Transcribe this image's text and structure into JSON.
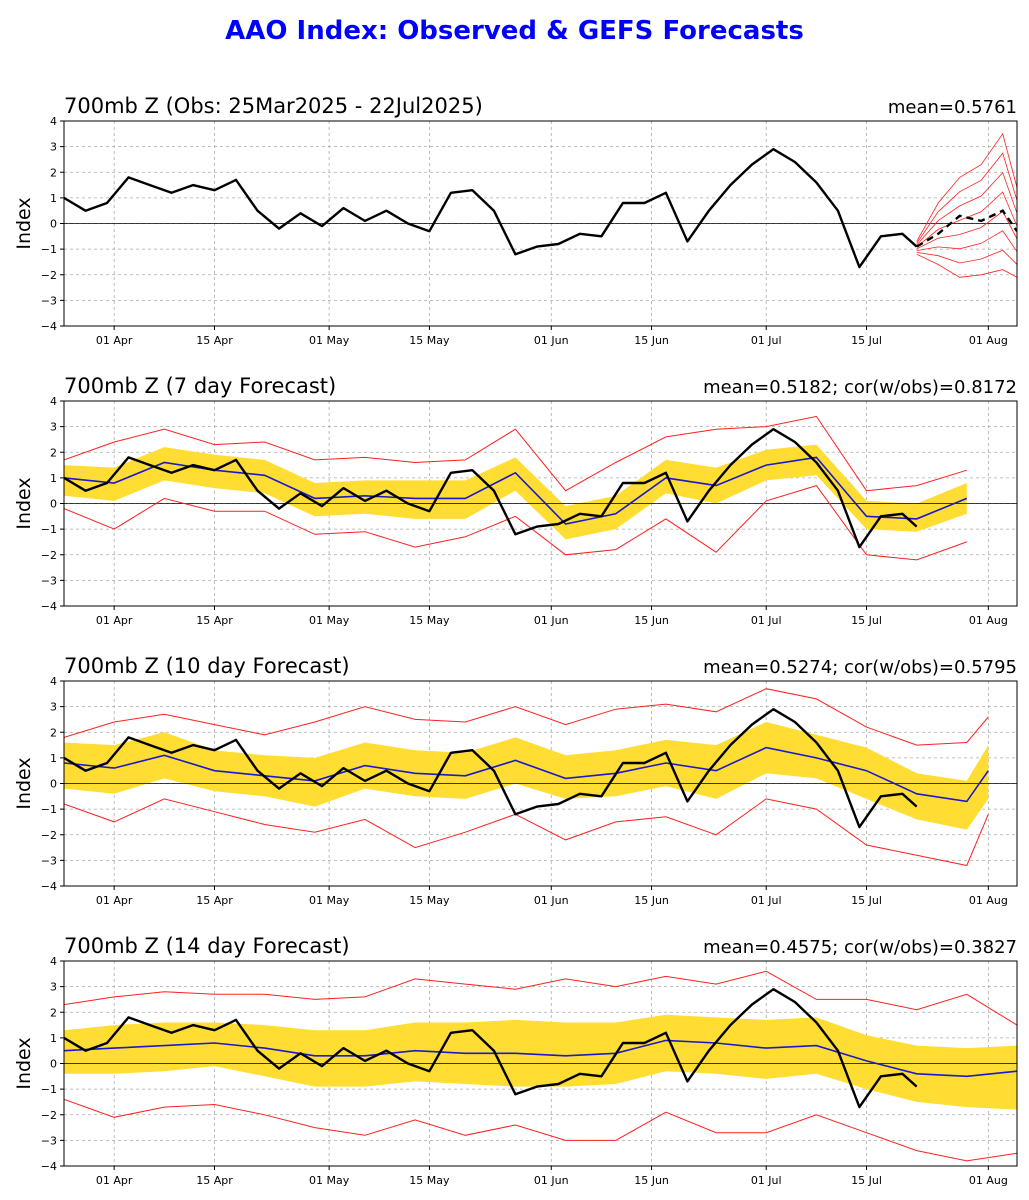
{
  "title": "AAO Index: Observed & GEFS Forecasts",
  "colors": {
    "title": "#0000ff",
    "observed": "#000000",
    "forecast_mean": "#1a1acc",
    "spread": "#ffdd33",
    "ensemble": "#ff2020",
    "grid": "#aaaaaa"
  },
  "x_ticks": [
    "01 Apr",
    "15 Apr",
    "01 May",
    "15 May",
    "01 Jun",
    "15 Jun",
    "01 Jul",
    "15 Jul",
    "01 Aug"
  ],
  "y_ticks": [
    "4",
    "3",
    "2",
    "1",
    "0",
    "−1",
    "−2",
    "−3",
    "−4"
  ],
  "chart_data": [
    {
      "type": "line",
      "title": "700mb Z (Obs: 25Mar2025 - 22Jul2025)",
      "stat": "mean=0.5761",
      "ylabel": "Index",
      "ylim": [
        -4,
        4
      ],
      "grid": true,
      "x_range": [
        "2025-03-25",
        "2025-08-05"
      ],
      "observed": {
        "x": [
          "2025-03-25",
          "2025-03-28",
          "2025-03-31",
          "2025-04-03",
          "2025-04-06",
          "2025-04-09",
          "2025-04-12",
          "2025-04-15",
          "2025-04-18",
          "2025-04-21",
          "2025-04-24",
          "2025-04-27",
          "2025-04-30",
          "2025-05-03",
          "2025-05-06",
          "2025-05-09",
          "2025-05-12",
          "2025-05-15",
          "2025-05-18",
          "2025-05-21",
          "2025-05-24",
          "2025-05-27",
          "2025-05-30",
          "2025-06-02",
          "2025-06-05",
          "2025-06-08",
          "2025-06-11",
          "2025-06-14",
          "2025-06-17",
          "2025-06-20",
          "2025-06-23",
          "2025-06-26",
          "2025-06-29",
          "2025-07-02",
          "2025-07-05",
          "2025-07-08",
          "2025-07-11",
          "2025-07-14",
          "2025-07-17",
          "2025-07-20",
          "2025-07-22"
        ],
        "y": [
          1.0,
          0.5,
          0.8,
          1.8,
          1.5,
          1.2,
          1.5,
          1.3,
          1.7,
          0.5,
          -0.2,
          0.4,
          -0.1,
          0.6,
          0.1,
          0.5,
          0.0,
          -0.3,
          1.2,
          1.3,
          0.5,
          -1.2,
          -0.9,
          -0.8,
          -0.4,
          -0.5,
          0.8,
          0.8,
          1.2,
          -0.7,
          0.5,
          1.5,
          2.3,
          2.9,
          2.4,
          1.6,
          0.5,
          -1.7,
          -0.5,
          -0.4,
          -0.9
        ]
      },
      "ensemble_forecast": {
        "x": [
          "2025-07-22",
          "2025-07-25",
          "2025-07-28",
          "2025-07-31",
          "2025-08-03",
          "2025-08-05"
        ],
        "mean": [
          -0.9,
          -0.4,
          0.3,
          0.1,
          0.5,
          -0.3
        ],
        "member_min": [
          -1.2,
          -1.6,
          -2.1,
          -2.0,
          -1.8,
          -2.1
        ],
        "member_max": [
          -0.7,
          0.8,
          1.8,
          2.3,
          3.5,
          1.4
        ]
      }
    },
    {
      "type": "line",
      "title": "700mb Z (7 day Forecast)",
      "stat": "mean=0.5182; cor(w/obs)=0.8172",
      "ylabel": "Index",
      "ylim": [
        -4,
        4
      ],
      "grid": true,
      "x": [
        "2025-03-25",
        "2025-04-01",
        "2025-04-08",
        "2025-04-15",
        "2025-04-22",
        "2025-04-29",
        "2025-05-06",
        "2025-05-13",
        "2025-05-20",
        "2025-05-27",
        "2025-06-03",
        "2025-06-10",
        "2025-06-17",
        "2025-06-24",
        "2025-07-01",
        "2025-07-08",
        "2025-07-15",
        "2025-07-22",
        "2025-07-29"
      ],
      "forecast_mean": [
        1.0,
        0.8,
        1.6,
        1.3,
        1.1,
        0.2,
        0.3,
        0.2,
        0.2,
        1.2,
        -0.8,
        -0.4,
        1.0,
        0.7,
        1.5,
        1.8,
        -0.5,
        -0.6,
        0.2
      ],
      "spread_low": [
        0.3,
        0.1,
        0.9,
        0.6,
        0.4,
        -0.5,
        -0.4,
        -0.6,
        -0.6,
        0.5,
        -1.4,
        -1.0,
        0.4,
        0.0,
        0.9,
        1.1,
        -1.0,
        -1.1,
        -0.4
      ],
      "spread_high": [
        1.5,
        1.4,
        2.2,
        1.9,
        1.7,
        0.8,
        0.9,
        0.9,
        0.9,
        1.8,
        -0.1,
        0.3,
        1.7,
        1.4,
        2.1,
        2.3,
        0.1,
        0.0,
        0.8
      ],
      "member_min": [
        -0.2,
        -1.0,
        0.2,
        -0.3,
        -0.3,
        -1.2,
        -1.1,
        -1.7,
        -1.3,
        -0.5,
        -2.0,
        -1.8,
        -0.6,
        -1.9,
        0.1,
        0.7,
        -2.0,
        -2.2,
        -1.5
      ],
      "member_max": [
        1.7,
        2.4,
        2.9,
        2.3,
        2.4,
        1.7,
        1.8,
        1.6,
        1.7,
        2.9,
        0.5,
        1.6,
        2.6,
        2.9,
        3.0,
        3.4,
        0.5,
        0.7,
        1.3
      ]
    },
    {
      "type": "line",
      "title": "700mb Z (10 day Forecast)",
      "stat": "mean=0.5274; cor(w/obs)=0.5795",
      "ylabel": "Index",
      "ylim": [
        -4,
        4
      ],
      "grid": true,
      "x": [
        "2025-03-25",
        "2025-04-01",
        "2025-04-08",
        "2025-04-15",
        "2025-04-22",
        "2025-04-29",
        "2025-05-06",
        "2025-05-13",
        "2025-05-20",
        "2025-05-27",
        "2025-06-03",
        "2025-06-10",
        "2025-06-17",
        "2025-06-24",
        "2025-07-01",
        "2025-07-08",
        "2025-07-15",
        "2025-07-22",
        "2025-07-29",
        "2025-08-01"
      ],
      "forecast_mean": [
        0.8,
        0.6,
        1.1,
        0.5,
        0.3,
        0.1,
        0.7,
        0.4,
        0.3,
        0.9,
        0.2,
        0.4,
        0.8,
        0.5,
        1.4,
        1.0,
        0.5,
        -0.4,
        -0.7,
        0.5
      ],
      "spread_low": [
        -0.2,
        -0.4,
        0.2,
        -0.3,
        -0.5,
        -0.9,
        -0.2,
        -0.5,
        -0.6,
        0.0,
        -0.6,
        -0.5,
        -0.1,
        -0.6,
        0.4,
        0.2,
        -0.6,
        -1.4,
        -1.8,
        -0.6
      ],
      "spread_high": [
        1.6,
        1.5,
        2.0,
        1.3,
        1.1,
        1.0,
        1.6,
        1.3,
        1.2,
        1.8,
        1.1,
        1.3,
        1.7,
        1.5,
        2.4,
        1.9,
        1.4,
        0.4,
        0.1,
        1.5
      ],
      "member_min": [
        -0.8,
        -1.5,
        -0.6,
        -1.1,
        -1.6,
        -1.9,
        -1.4,
        -2.5,
        -1.9,
        -1.2,
        -2.2,
        -1.5,
        -1.3,
        -2.0,
        -0.6,
        -1.0,
        -2.4,
        -2.8,
        -3.2,
        -1.2
      ],
      "member_max": [
        1.8,
        2.4,
        2.7,
        2.3,
        1.9,
        2.4,
        3.0,
        2.5,
        2.4,
        3.0,
        2.3,
        2.9,
        3.1,
        2.8,
        3.7,
        3.3,
        2.2,
        1.5,
        1.6,
        2.6
      ]
    },
    {
      "type": "line",
      "title": "700mb Z (14 day Forecast)",
      "stat": "mean=0.4575; cor(w/obs)=0.3827",
      "ylabel": "Index",
      "ylim": [
        -4,
        4
      ],
      "grid": true,
      "x": [
        "2025-03-25",
        "2025-04-01",
        "2025-04-08",
        "2025-04-15",
        "2025-04-22",
        "2025-04-29",
        "2025-05-06",
        "2025-05-13",
        "2025-05-20",
        "2025-05-27",
        "2025-06-03",
        "2025-06-10",
        "2025-06-17",
        "2025-06-24",
        "2025-07-01",
        "2025-07-08",
        "2025-07-15",
        "2025-07-22",
        "2025-07-29",
        "2025-08-05"
      ],
      "forecast_mean": [
        0.5,
        0.6,
        0.7,
        0.8,
        0.6,
        0.3,
        0.3,
        0.5,
        0.4,
        0.4,
        0.3,
        0.4,
        0.9,
        0.8,
        0.6,
        0.7,
        0.1,
        -0.4,
        -0.5,
        -0.3
      ],
      "spread_low": [
        -0.4,
        -0.4,
        -0.3,
        -0.1,
        -0.5,
        -0.9,
        -0.9,
        -0.7,
        -0.8,
        -0.9,
        -0.9,
        -0.8,
        -0.3,
        -0.4,
        -0.6,
        -0.4,
        -1.0,
        -1.5,
        -1.7,
        -1.8
      ],
      "spread_high": [
        1.3,
        1.5,
        1.6,
        1.6,
        1.5,
        1.3,
        1.3,
        1.6,
        1.6,
        1.7,
        1.6,
        1.6,
        1.9,
        1.8,
        1.7,
        1.8,
        1.1,
        0.7,
        0.6,
        0.7
      ],
      "member_min": [
        -1.4,
        -2.1,
        -1.7,
        -1.6,
        -2.0,
        -2.5,
        -2.8,
        -2.2,
        -2.8,
        -2.4,
        -3.0,
        -3.0,
        -1.9,
        -2.7,
        -2.7,
        -2.0,
        -2.7,
        -3.4,
        -3.8,
        -3.5
      ],
      "member_max": [
        2.3,
        2.6,
        2.8,
        2.7,
        2.7,
        2.5,
        2.6,
        3.3,
        3.1,
        2.9,
        3.3,
        3.0,
        3.4,
        3.1,
        3.6,
        2.5,
        2.5,
        2.1,
        2.7,
        1.5
      ]
    }
  ]
}
